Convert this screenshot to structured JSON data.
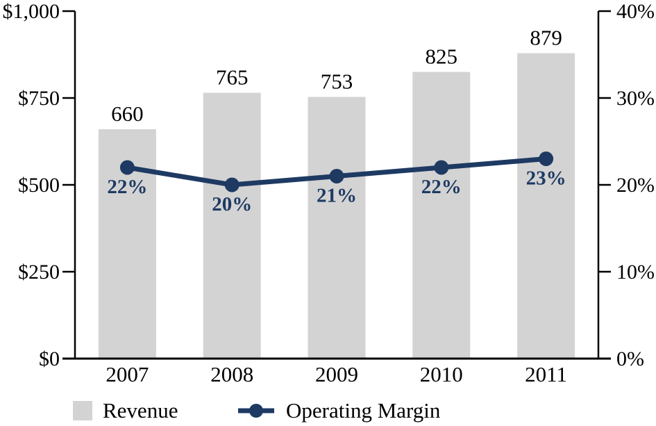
{
  "chart_data": {
    "type": "combo",
    "categories": [
      "2007",
      "2008",
      "2009",
      "2010",
      "2011"
    ],
    "series": [
      {
        "name": "Revenue",
        "type": "bar",
        "axis": "left",
        "values": [
          660,
          765,
          753,
          825,
          879
        ],
        "labels": [
          "660",
          "765",
          "753",
          "825",
          "879"
        ],
        "color": "#d3d3d3"
      },
      {
        "name": "Operating Margin",
        "type": "line",
        "axis": "right",
        "values": [
          22,
          20,
          21,
          22,
          23
        ],
        "labels": [
          "22%",
          "20%",
          "21%",
          "22%",
          "23%"
        ],
        "color": "#1e3a63"
      }
    ],
    "left_axis": {
      "min": 0,
      "max": 1000,
      "tick_labels": [
        "$1,000",
        "$750",
        "$500",
        "$250",
        "$0"
      ]
    },
    "right_axis": {
      "min": 0,
      "max": 40,
      "tick_labels": [
        "40%",
        "30%",
        "20%",
        "10%",
        "0%"
      ]
    },
    "grid": "off",
    "legend_position": "bottom",
    "colors": {
      "bar": "#d3d3d3",
      "line": "#1e3a63",
      "axis": "#000000",
      "text": "#000000"
    }
  }
}
